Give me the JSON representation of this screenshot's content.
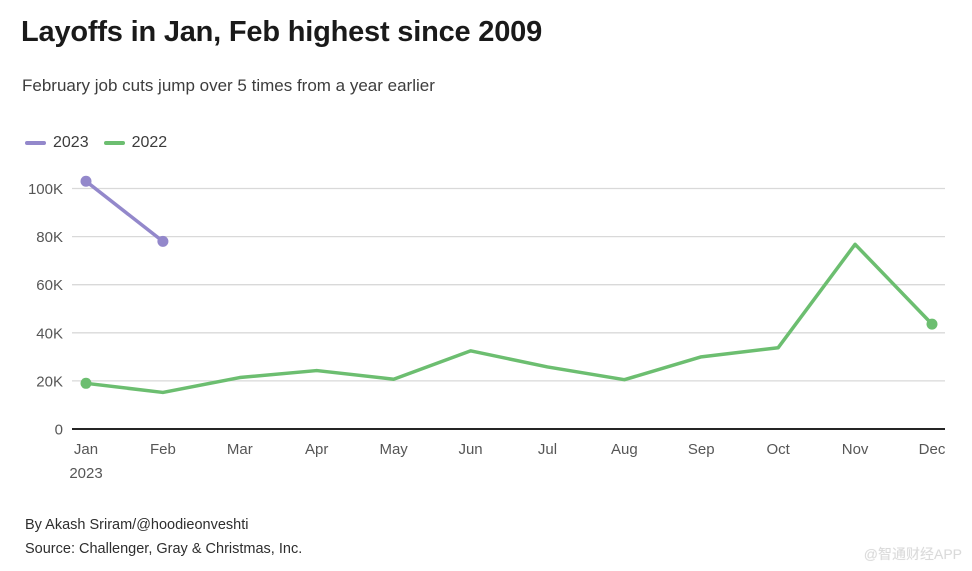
{
  "header": {
    "title": "Layoffs in Jan, Feb highest since 2009",
    "subtitle": "February job cuts jump over 5 times from a year earlier"
  },
  "chart_data": {
    "type": "line",
    "title": "Layoffs in Jan, Feb highest since 2009",
    "subtitle": "February job cuts jump over 5 times from a year earlier",
    "categories": [
      "Jan",
      "Feb",
      "Mar",
      "Apr",
      "May",
      "Jun",
      "Jul",
      "Aug",
      "Sep",
      "Oct",
      "Nov",
      "Dec"
    ],
    "x_first_tick_sub_label": "2023",
    "y_ticks": [
      0,
      20000,
      40000,
      60000,
      80000,
      100000
    ],
    "y_tick_labels": [
      "0",
      "20K",
      "40K",
      "60K",
      "80K",
      "100K"
    ],
    "ylim": [
      0,
      107000
    ],
    "grid": "horizontal",
    "legend_position": "top-left",
    "series": [
      {
        "name": "2023",
        "color": "#9388cb",
        "values": [
          103000,
          78000,
          null,
          null,
          null,
          null,
          null,
          null,
          null,
          null,
          null,
          null
        ]
      },
      {
        "name": "2022",
        "color": "#6cbe70",
        "values": [
          19000,
          15200,
          21400,
          24300,
          20700,
          32500,
          25800,
          20500,
          30000,
          33800,
          76800,
          43600
        ]
      }
    ],
    "colors": {
      "gridline": "#d9d9d9",
      "zero_axis": "#252525",
      "tick_text": "#565656"
    }
  },
  "footer": {
    "byline": "By Akash Sriram/@hoodieonveshti",
    "source": "Source: Challenger, Gray & Christmas, Inc."
  },
  "watermark": "@智通财经APP"
}
